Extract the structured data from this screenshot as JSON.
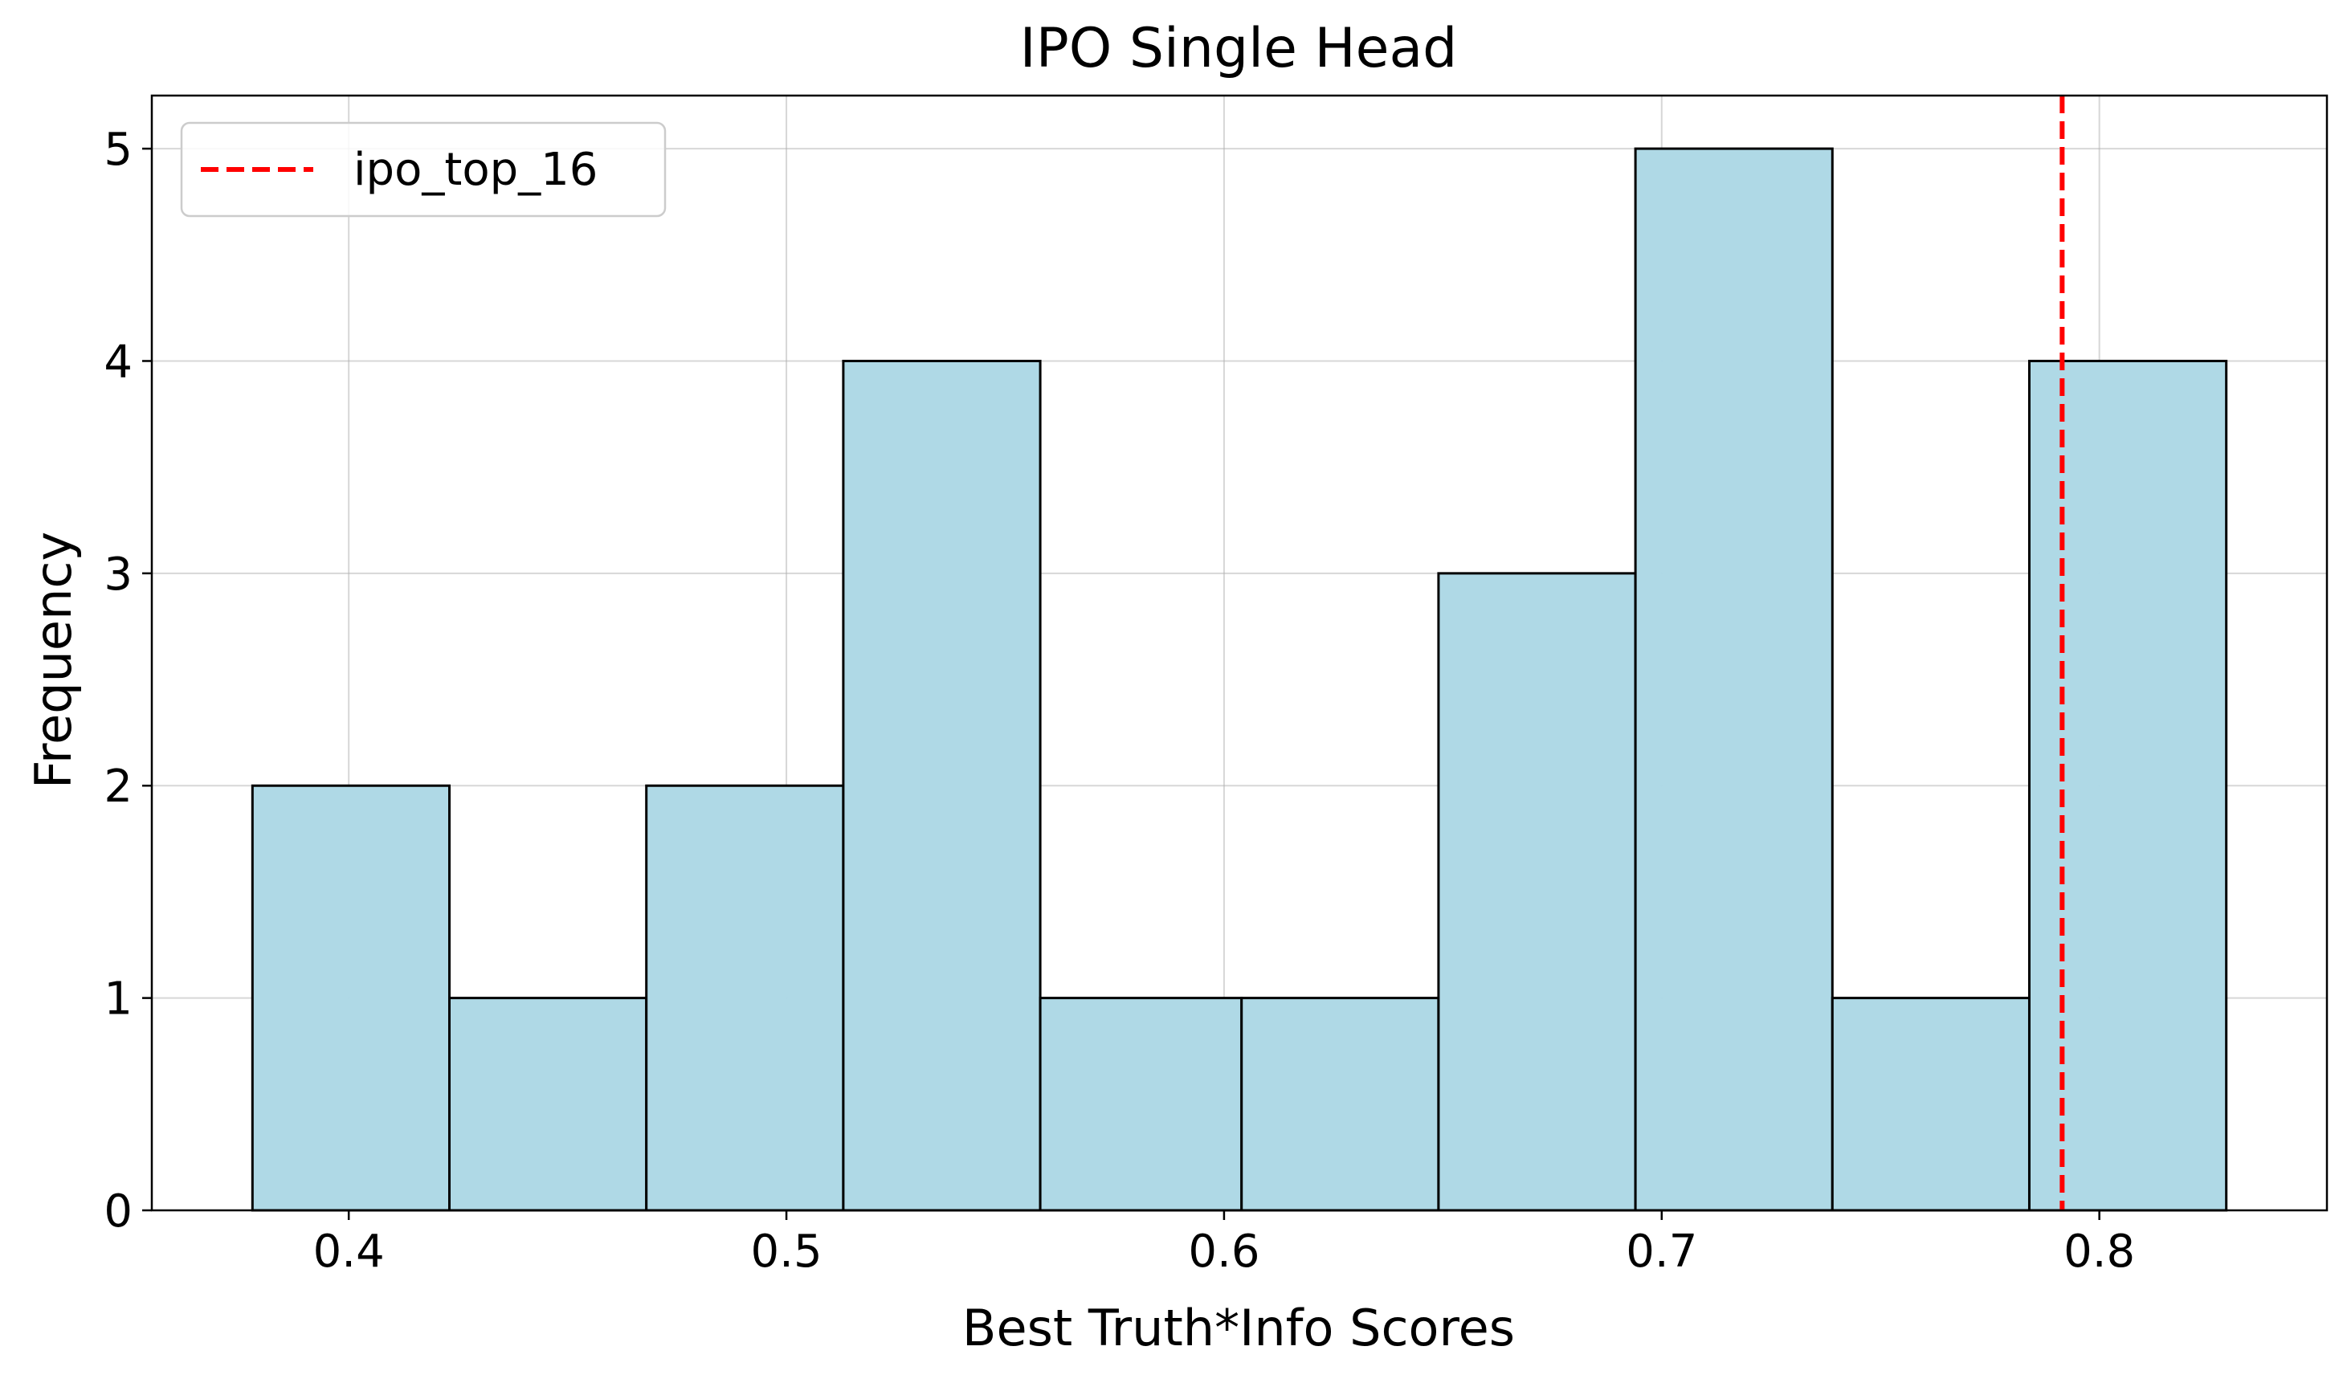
{
  "chart_data": {
    "type": "bar",
    "title": "IPO Single Head",
    "xlabel": "Best Truth*Info Scores",
    "ylabel": "Frequency",
    "bins": [
      {
        "x0": 0.378,
        "x1": 0.423,
        "count": 2
      },
      {
        "x0": 0.423,
        "x1": 0.468,
        "count": 1
      },
      {
        "x0": 0.468,
        "x1": 0.513,
        "count": 2
      },
      {
        "x0": 0.513,
        "x1": 0.558,
        "count": 4
      },
      {
        "x0": 0.558,
        "x1": 0.604,
        "count": 1
      },
      {
        "x0": 0.604,
        "x1": 0.649,
        "count": 1
      },
      {
        "x0": 0.649,
        "x1": 0.694,
        "count": 3
      },
      {
        "x0": 0.694,
        "x1": 0.739,
        "count": 5
      },
      {
        "x0": 0.739,
        "x1": 0.784,
        "count": 1
      },
      {
        "x0": 0.784,
        "x1": 0.829,
        "count": 4
      }
    ],
    "xlim": [
      0.355,
      0.852
    ],
    "ylim": [
      0,
      5.25
    ],
    "xticks": [
      0.4,
      0.5,
      0.6,
      0.7,
      0.8
    ],
    "xtick_labels": [
      "0.4",
      "0.5",
      "0.6",
      "0.7",
      "0.8"
    ],
    "yticks": [
      0,
      1,
      2,
      3,
      4,
      5
    ],
    "ytick_labels": [
      "0",
      "1",
      "2",
      "3",
      "4",
      "5"
    ],
    "reference_line": {
      "x": 0.7915,
      "name": "ipo_top_16",
      "color": "#ff0000",
      "style": "dashed"
    },
    "bar_color": "#add8e6",
    "bar_edge_color": "#000000",
    "grid": true,
    "legend": {
      "position": "top-left",
      "entries": [
        "ipo_top_16"
      ]
    }
  }
}
